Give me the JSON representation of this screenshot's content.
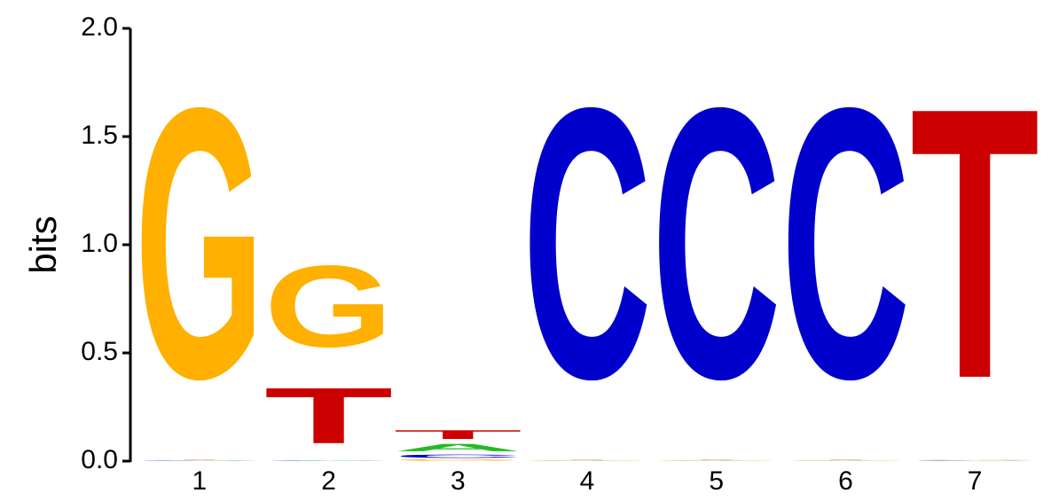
{
  "chart_data": {
    "type": "logo",
    "ylabel": "bits",
    "categories": [
      "1",
      "2",
      "3",
      "4",
      "5",
      "6",
      "7"
    ],
    "series": [
      {
        "name": "A",
        "color": "#22bb22",
        "values": [
          0.002,
          0.002,
          0.055,
          0.002,
          0.002,
          0.002,
          0.002
        ]
      },
      {
        "name": "C",
        "color": "#0000cc",
        "values": [
          0.002,
          0.002,
          0.025,
          1.99,
          1.99,
          1.99,
          0.002
        ]
      },
      {
        "name": "G",
        "color": "#ffb000",
        "values": [
          1.99,
          0.6,
          0.01,
          0.002,
          0.002,
          0.002,
          0.002
        ]
      },
      {
        "name": "T",
        "color": "#cc0000",
        "values": [
          0.002,
          0.41,
          0.065,
          0.002,
          0.002,
          0.002,
          1.99
        ]
      }
    ],
    "ylim": [
      0,
      2
    ],
    "yticks": [
      {
        "value": 0,
        "label": "0.0"
      },
      0.5,
      {
        "value": 1,
        "label": "1.0"
      },
      1.5,
      {
        "value": 2,
        "label": "2.0"
      }
    ]
  }
}
